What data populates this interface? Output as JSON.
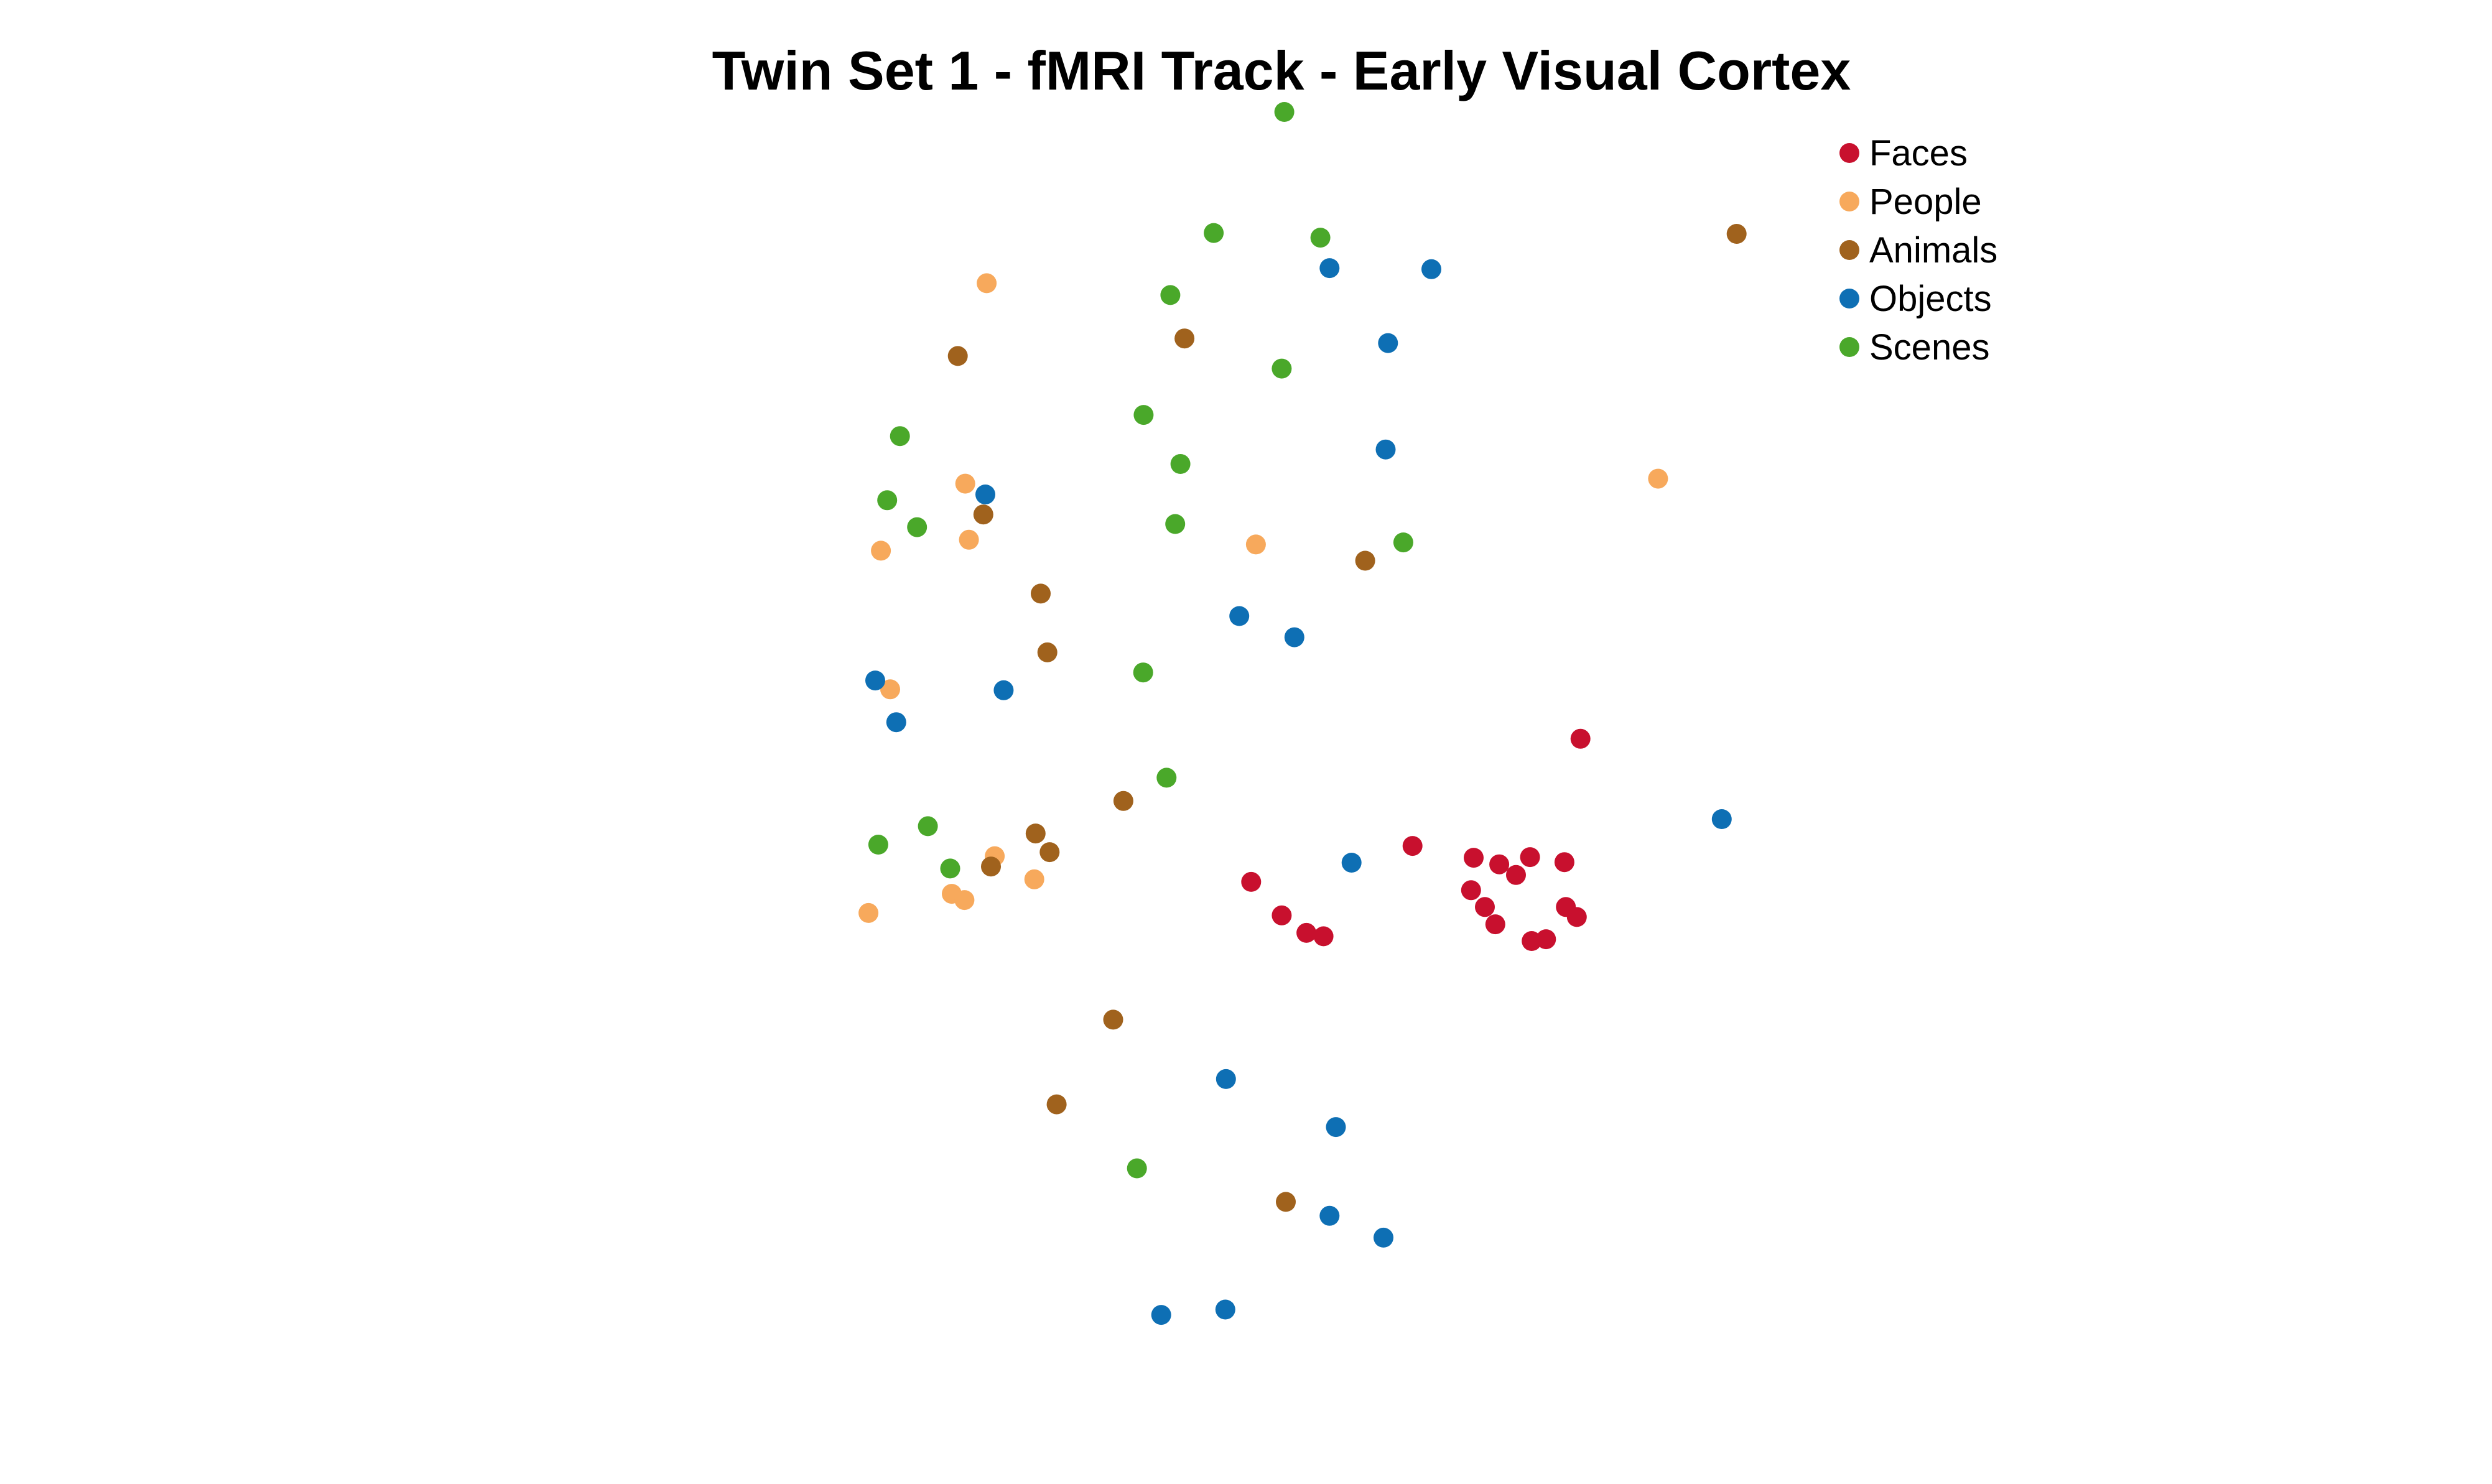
{
  "chart_data": {
    "type": "scatter",
    "title": "Twin Set 1 - fMRI Track - Early Visual Cortex",
    "xlabel": "",
    "ylabel": "",
    "axes_visible": false,
    "grid": false,
    "legend_position": "top-right",
    "xlim": [
      0,
      100
    ],
    "ylim": [
      0,
      100
    ],
    "series": [
      {
        "name": "Faces",
        "color": "#c8102e",
        "points": [
          {
            "x": 73.86,
            "y": 48.58
          },
          {
            "x": 59.72,
            "y": 39.79
          },
          {
            "x": 64.87,
            "y": 38.82
          },
          {
            "x": 67.02,
            "y": 38.28
          },
          {
            "x": 69.61,
            "y": 38.87
          },
          {
            "x": 68.43,
            "y": 37.41
          },
          {
            "x": 72.51,
            "y": 38.46
          },
          {
            "x": 66.69,
            "y": 33.36
          },
          {
            "x": 65.81,
            "y": 34.78
          },
          {
            "x": 64.65,
            "y": 36.16
          },
          {
            "x": 72.63,
            "y": 34.78
          },
          {
            "x": 70.96,
            "y": 32.14
          },
          {
            "x": 69.75,
            "y": 31.99
          },
          {
            "x": 73.55,
            "y": 33.96
          },
          {
            "x": 48.71,
            "y": 34.09
          },
          {
            "x": 52.23,
            "y": 32.38
          },
          {
            "x": 50.79,
            "y": 32.66
          },
          {
            "x": 46.14,
            "y": 36.84
          }
        ]
      },
      {
        "name": "People",
        "color": "#f7a95c",
        "points": [
          {
            "x": 23.88,
            "y": 85.95
          },
          {
            "x": 22.08,
            "y": 69.51
          },
          {
            "x": 22.39,
            "y": 64.91
          },
          {
            "x": 14.98,
            "y": 64.01
          },
          {
            "x": 15.76,
            "y": 52.64
          },
          {
            "x": 24.56,
            "y": 38.95
          },
          {
            "x": 20.94,
            "y": 35.86
          },
          {
            "x": 22.01,
            "y": 35.35
          },
          {
            "x": 27.89,
            "y": 37.05
          },
          {
            "x": 13.93,
            "y": 34.29
          },
          {
            "x": 46.54,
            "y": 64.52
          },
          {
            "x": 80.39,
            "y": 69.92
          }
        ]
      },
      {
        "name": "Animals",
        "color": "#a0621d",
        "points": [
          {
            "x": 21.45,
            "y": 79.98
          },
          {
            "x": 40.53,
            "y": 81.42
          },
          {
            "x": 23.6,
            "y": 66.98
          },
          {
            "x": 28.43,
            "y": 60.49
          },
          {
            "x": 28.99,
            "y": 55.67
          },
          {
            "x": 35.39,
            "y": 43.48
          },
          {
            "x": 28.0,
            "y": 40.81
          },
          {
            "x": 29.18,
            "y": 39.28
          },
          {
            "x": 24.24,
            "y": 38.1
          },
          {
            "x": 34.53,
            "y": 25.54
          },
          {
            "x": 29.77,
            "y": 18.59
          },
          {
            "x": 55.74,
            "y": 63.19
          },
          {
            "x": 49.06,
            "y": 10.59
          },
          {
            "x": 87.0,
            "y": 90.0
          }
        ]
      },
      {
        "name": "Objects",
        "color": "#0e6fb4",
        "points": [
          {
            "x": 52.74,
            "y": 87.19
          },
          {
            "x": 61.31,
            "y": 87.1
          },
          {
            "x": 57.66,
            "y": 81.04
          },
          {
            "x": 57.46,
            "y": 72.31
          },
          {
            "x": 23.77,
            "y": 68.62
          },
          {
            "x": 45.14,
            "y": 58.65
          },
          {
            "x": 49.78,
            "y": 56.91
          },
          {
            "x": 14.5,
            "y": 53.36
          },
          {
            "x": 25.31,
            "y": 52.56
          },
          {
            "x": 16.27,
            "y": 49.94
          },
          {
            "x": 54.59,
            "y": 38.42
          },
          {
            "x": 85.75,
            "y": 41.99
          },
          {
            "x": 44.02,
            "y": 20.67
          },
          {
            "x": 53.27,
            "y": 16.73
          },
          {
            "x": 52.74,
            "y": 9.45
          },
          {
            "x": 57.28,
            "y": 7.66
          },
          {
            "x": 38.57,
            "y": 1.32
          },
          {
            "x": 43.97,
            "y": 1.76
          }
        ]
      },
      {
        "name": "Scenes",
        "color": "#4aa82a",
        "points": [
          {
            "x": 48.93,
            "y": 100.0
          },
          {
            "x": 42.99,
            "y": 90.07
          },
          {
            "x": 51.97,
            "y": 89.69
          },
          {
            "x": 39.34,
            "y": 84.98
          },
          {
            "x": 48.71,
            "y": 78.95
          },
          {
            "x": 37.09,
            "y": 75.15
          },
          {
            "x": 40.19,
            "y": 71.12
          },
          {
            "x": 16.58,
            "y": 73.41
          },
          {
            "x": 15.51,
            "y": 68.15
          },
          {
            "x": 18.02,
            "y": 65.94
          },
          {
            "x": 39.75,
            "y": 66.2
          },
          {
            "x": 58.95,
            "y": 64.69
          },
          {
            "x": 37.05,
            "y": 54.02
          },
          {
            "x": 39.02,
            "y": 45.39
          },
          {
            "x": 18.93,
            "y": 41.41
          },
          {
            "x": 14.76,
            "y": 39.9
          },
          {
            "x": 20.81,
            "y": 37.94
          },
          {
            "x": 36.53,
            "y": 13.34
          }
        ]
      }
    ]
  }
}
